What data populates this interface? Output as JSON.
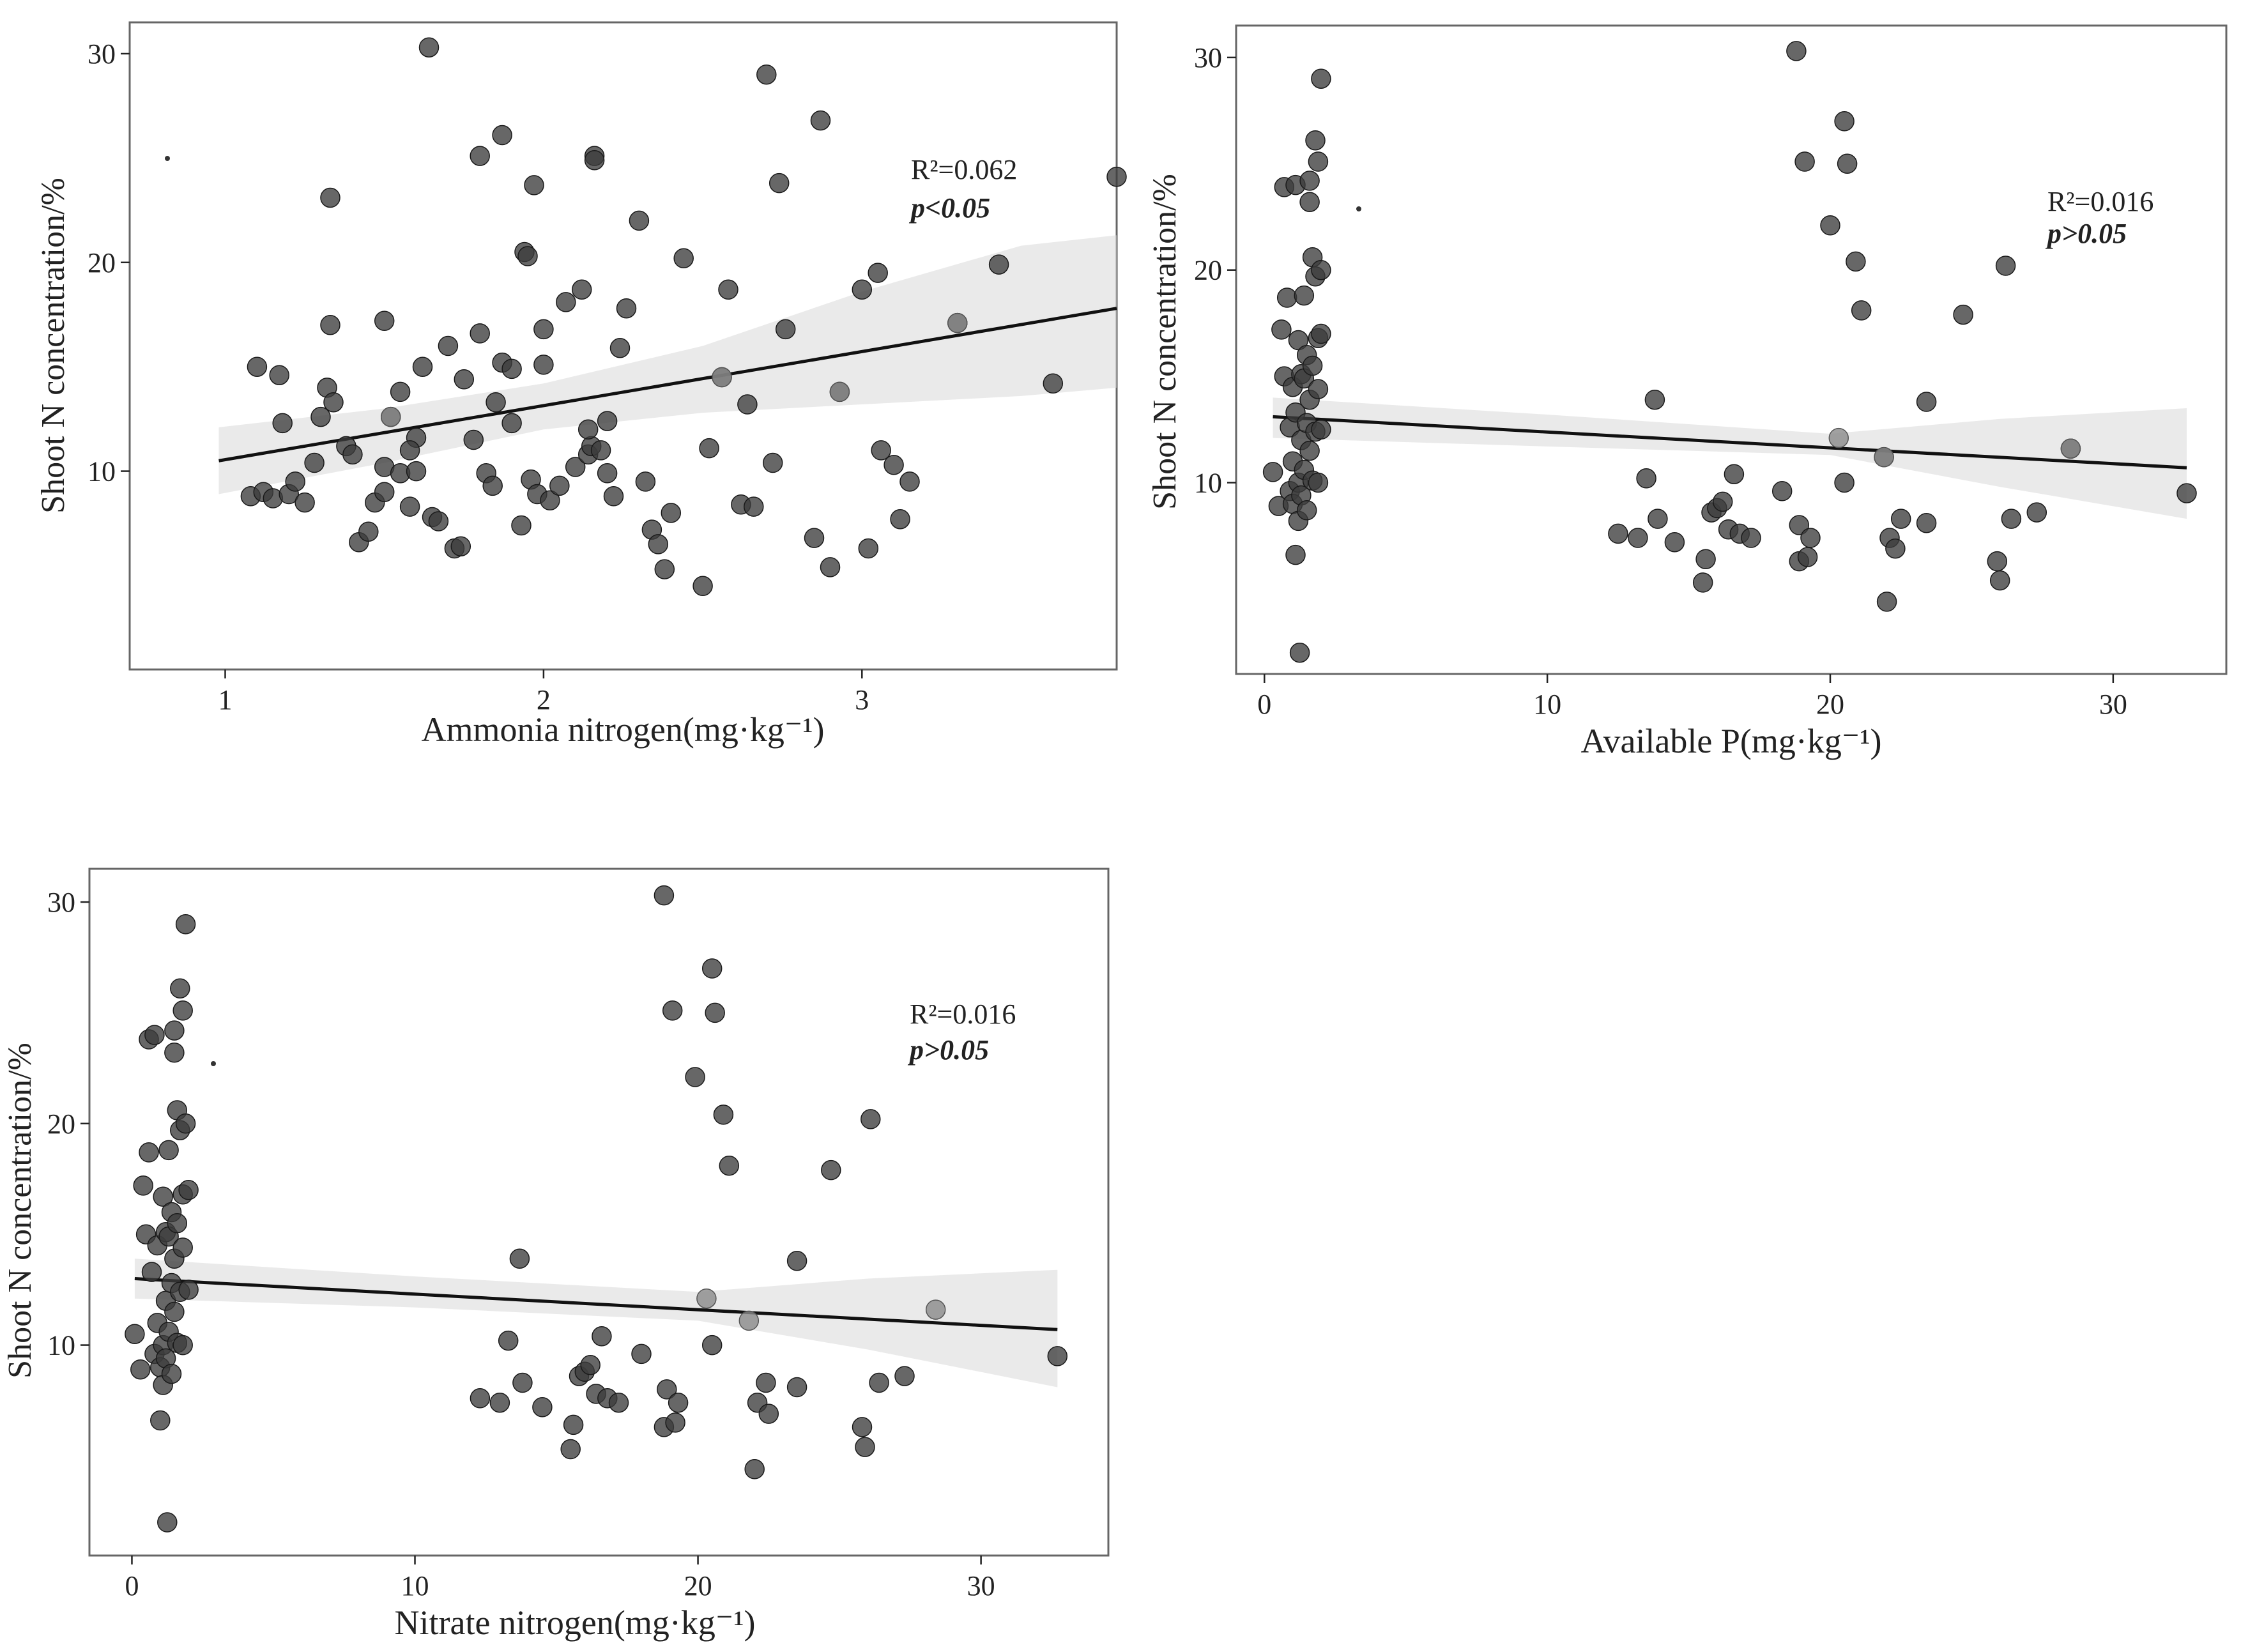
{
  "chart_data": [
    {
      "id": "ammonia",
      "type": "scatter",
      "xlabel": "Ammonia nitrogen(mg·kg⁻¹)",
      "ylabel": "Shoot N concentration/%",
      "xticks": [
        1,
        2,
        3
      ],
      "yticks": [
        10,
        20,
        30
      ],
      "xlim": [
        0.7,
        3.8
      ],
      "ylim": [
        0.5,
        31.5
      ],
      "annotation": {
        "r2": "R²=0.062",
        "p": "p<0.05"
      },
      "fit": {
        "x0": 0.98,
        "y0": 10.5,
        "x1": 3.8,
        "y1": 17.8
      },
      "band": [
        [
          0.98,
          12.1,
          8.9
        ],
        [
          1.5,
          13.0,
          10.4
        ],
        [
          2.0,
          14.2,
          12.0
        ],
        [
          2.5,
          16.0,
          12.8
        ],
        [
          3.0,
          18.6,
          13.2
        ],
        [
          3.5,
          20.8,
          13.6
        ],
        [
          3.8,
          21.3,
          14.0
        ]
      ],
      "points": [
        [
          1.1,
          15.0
        ],
        [
          1.17,
          14.6
        ],
        [
          1.18,
          12.3
        ],
        [
          1.08,
          8.8
        ],
        [
          1.12,
          9.0
        ],
        [
          1.15,
          8.7
        ],
        [
          1.2,
          8.9
        ],
        [
          1.22,
          9.5
        ],
        [
          1.25,
          8.5
        ],
        [
          1.28,
          10.4
        ],
        [
          1.3,
          12.6
        ],
        [
          1.32,
          14.0
        ],
        [
          1.34,
          13.3
        ],
        [
          1.33,
          17.0
        ],
        [
          1.33,
          23.1
        ],
        [
          1.38,
          11.2
        ],
        [
          1.4,
          10.8
        ],
        [
          1.42,
          6.6
        ],
        [
          1.45,
          7.1
        ],
        [
          1.47,
          8.5
        ],
        [
          1.5,
          9.0
        ],
        [
          1.5,
          10.2
        ],
        [
          1.5,
          17.2
        ],
        [
          1.52,
          12.6
        ],
        [
          1.55,
          13.8
        ],
        [
          1.55,
          9.9
        ],
        [
          1.58,
          8.3
        ],
        [
          1.6,
          11.6
        ],
        [
          1.62,
          15.0
        ],
        [
          1.64,
          30.3
        ],
        [
          1.65,
          7.8
        ],
        [
          1.67,
          7.6
        ],
        [
          1.7,
          16.0
        ],
        [
          1.72,
          6.3
        ],
        [
          1.74,
          6.4
        ],
        [
          1.75,
          14.4
        ],
        [
          1.78,
          11.5
        ],
        [
          1.8,
          16.6
        ],
        [
          1.8,
          25.1
        ],
        [
          1.82,
          9.9
        ],
        [
          1.84,
          9.3
        ],
        [
          1.85,
          13.3
        ],
        [
          1.87,
          15.2
        ],
        [
          1.87,
          26.1
        ],
        [
          1.9,
          14.9
        ],
        [
          1.93,
          7.4
        ],
        [
          1.94,
          20.5
        ],
        [
          1.95,
          20.3
        ],
        [
          1.96,
          9.6
        ],
        [
          1.97,
          23.7
        ],
        [
          1.98,
          8.9
        ],
        [
          2.0,
          16.8
        ],
        [
          2.0,
          15.1
        ],
        [
          2.02,
          8.6
        ],
        [
          2.05,
          9.3
        ],
        [
          2.07,
          18.1
        ],
        [
          2.1,
          10.2
        ],
        [
          2.12,
          18.7
        ],
        [
          2.14,
          10.8
        ],
        [
          2.15,
          11.2
        ],
        [
          2.16,
          25.1
        ],
        [
          2.16,
          24.9
        ],
        [
          2.18,
          11.0
        ],
        [
          2.2,
          12.4
        ],
        [
          2.2,
          9.9
        ],
        [
          2.22,
          8.8
        ],
        [
          2.24,
          15.9
        ],
        [
          2.26,
          17.8
        ],
        [
          2.3,
          22.0
        ],
        [
          2.32,
          9.5
        ],
        [
          2.34,
          7.2
        ],
        [
          2.36,
          6.5
        ],
        [
          2.38,
          5.3
        ],
        [
          2.44,
          20.2
        ],
        [
          2.5,
          4.5
        ],
        [
          2.52,
          11.1
        ],
        [
          2.56,
          14.5
        ],
        [
          2.58,
          18.7
        ],
        [
          2.62,
          8.4
        ],
        [
          2.64,
          13.2
        ],
        [
          2.66,
          8.3
        ],
        [
          2.7,
          29.0
        ],
        [
          2.72,
          10.4
        ],
        [
          2.74,
          23.8
        ],
        [
          2.76,
          16.8
        ],
        [
          2.85,
          6.8
        ],
        [
          2.87,
          26.8
        ],
        [
          2.9,
          5.4
        ],
        [
          2.93,
          13.8
        ],
        [
          3.0,
          18.7
        ],
        [
          3.02,
          6.3
        ],
        [
          3.05,
          19.5
        ],
        [
          3.06,
          11.0
        ],
        [
          3.1,
          10.3
        ],
        [
          3.12,
          7.7
        ],
        [
          3.15,
          9.5
        ],
        [
          3.3,
          17.1
        ],
        [
          3.43,
          19.9
        ],
        [
          3.6,
          14.2
        ],
        [
          3.8,
          24.1
        ],
        [
          2.14,
          12.0
        ],
        [
          1.6,
          10.0
        ],
        [
          1.9,
          12.3
        ],
        [
          2.4,
          8.0
        ],
        [
          1.58,
          11.0
        ]
      ],
      "light_points": [
        [
          3.3,
          17.1
        ],
        [
          2.56,
          14.5
        ],
        [
          2.93,
          13.8
        ],
        [
          1.52,
          12.6
        ]
      ]
    },
    {
      "id": "availableP",
      "type": "scatter",
      "xlabel": "Available P(mg·kg⁻¹)",
      "ylabel": "Shoot N concentration/%",
      "xticks": [
        0,
        10,
        20,
        30
      ],
      "yticks": [
        10,
        20,
        30
      ],
      "xlim": [
        -1.0,
        34.0
      ],
      "ylim": [
        1.0,
        31.5
      ],
      "annotation": {
        "r2": "R²=0.016",
        "p": "p>0.05"
      },
      "fit": {
        "x0": 0.3,
        "y0": 13.1,
        "x1": 32.6,
        "y1": 10.7
      },
      "band": [
        [
          0.3,
          14.0,
          12.1
        ],
        [
          10,
          13.2,
          11.7
        ],
        [
          20,
          12.3,
          11.3
        ],
        [
          26,
          13.0,
          9.8
        ],
        [
          32.6,
          13.5,
          8.3
        ]
      ],
      "points": [
        [
          0.3,
          10.5
        ],
        [
          0.5,
          8.9
        ],
        [
          0.6,
          17.2
        ],
        [
          0.7,
          23.9
        ],
        [
          0.7,
          15.0
        ],
        [
          0.8,
          18.7
        ],
        [
          0.9,
          12.6
        ],
        [
          0.9,
          9.6
        ],
        [
          1.0,
          14.5
        ],
        [
          1.0,
          11.0
        ],
        [
          1.0,
          9.0
        ],
        [
          1.1,
          24.0
        ],
        [
          1.1,
          13.3
        ],
        [
          1.1,
          6.6
        ],
        [
          1.2,
          16.7
        ],
        [
          1.2,
          10.0
        ],
        [
          1.2,
          8.2
        ],
        [
          1.25,
          2.0
        ],
        [
          1.3,
          15.1
        ],
        [
          1.3,
          12.0
        ],
        [
          1.3,
          9.4
        ],
        [
          1.4,
          18.8
        ],
        [
          1.4,
          14.9
        ],
        [
          1.4,
          10.6
        ],
        [
          1.5,
          16.0
        ],
        [
          1.5,
          12.8
        ],
        [
          1.5,
          8.7
        ],
        [
          1.6,
          23.2
        ],
        [
          1.6,
          24.2
        ],
        [
          1.6,
          13.9
        ],
        [
          1.6,
          11.5
        ],
        [
          1.7,
          20.6
        ],
        [
          1.7,
          15.5
        ],
        [
          1.7,
          10.1
        ],
        [
          1.8,
          26.1
        ],
        [
          1.8,
          19.7
        ],
        [
          1.8,
          12.4
        ],
        [
          1.9,
          25.1
        ],
        [
          1.9,
          16.8
        ],
        [
          1.9,
          14.4
        ],
        [
          1.9,
          10.0
        ],
        [
          2.0,
          29.0
        ],
        [
          2.0,
          20.0
        ],
        [
          2.0,
          17.0
        ],
        [
          2.0,
          12.5
        ],
        [
          12.5,
          7.6
        ],
        [
          13.2,
          7.4
        ],
        [
          13.5,
          10.2
        ],
        [
          13.8,
          13.9
        ],
        [
          13.9,
          8.3
        ],
        [
          14.5,
          7.2
        ],
        [
          15.5,
          5.3
        ],
        [
          15.6,
          6.4
        ],
        [
          15.8,
          8.6
        ],
        [
          16.0,
          8.8
        ],
        [
          16.2,
          9.1
        ],
        [
          16.4,
          7.8
        ],
        [
          16.6,
          10.4
        ],
        [
          16.8,
          7.6
        ],
        [
          17.2,
          7.4
        ],
        [
          18.3,
          9.6
        ],
        [
          18.8,
          30.3
        ],
        [
          18.9,
          6.3
        ],
        [
          18.9,
          8.0
        ],
        [
          19.1,
          25.1
        ],
        [
          19.2,
          6.5
        ],
        [
          19.3,
          7.4
        ],
        [
          20.0,
          22.1
        ],
        [
          20.5,
          27.0
        ],
        [
          20.5,
          10.0
        ],
        [
          20.6,
          25.0
        ],
        [
          20.9,
          20.4
        ],
        [
          21.1,
          18.1
        ],
        [
          21.9,
          11.2
        ],
        [
          22.0,
          4.4
        ],
        [
          22.1,
          7.4
        ],
        [
          22.3,
          6.9
        ],
        [
          22.5,
          8.3
        ],
        [
          23.4,
          13.8
        ],
        [
          23.4,
          8.1
        ],
        [
          24.7,
          17.9
        ],
        [
          25.9,
          6.3
        ],
        [
          26.0,
          5.4
        ],
        [
          26.2,
          20.2
        ],
        [
          26.4,
          8.3
        ],
        [
          27.3,
          8.6
        ],
        [
          28.5,
          11.6
        ],
        [
          32.6,
          9.5
        ]
      ],
      "light_points": [
        [
          20.3,
          12.1
        ],
        [
          21.9,
          11.2
        ],
        [
          28.5,
          11.6
        ]
      ]
    },
    {
      "id": "nitrate",
      "type": "scatter",
      "xlabel": "Nitrate nitrogen(mg·kg⁻¹)",
      "ylabel": "Shoot N concentration/%",
      "xticks": [
        0,
        10,
        20,
        30
      ],
      "yticks": [
        10,
        20,
        30
      ],
      "xlim": [
        -1.5,
        34.5
      ],
      "ylim": [
        0.5,
        31.5
      ],
      "annotation": {
        "r2": "R²=0.016",
        "p": "p>0.05"
      },
      "fit": {
        "x0": 0.1,
        "y0": 13.0,
        "x1": 32.7,
        "y1": 10.7
      },
      "band": [
        [
          0.1,
          13.9,
          12.1
        ],
        [
          10,
          13.1,
          11.7
        ],
        [
          20,
          12.4,
          11.1
        ],
        [
          26,
          13.0,
          9.8
        ],
        [
          32.7,
          13.4,
          8.1
        ]
      ],
      "points": [
        [
          0.1,
          10.5
        ],
        [
          0.3,
          8.9
        ],
        [
          0.4,
          17.2
        ],
        [
          0.5,
          15.0
        ],
        [
          0.6,
          23.8
        ],
        [
          0.6,
          18.7
        ],
        [
          0.7,
          13.3
        ],
        [
          0.8,
          9.6
        ],
        [
          0.8,
          24.0
        ],
        [
          0.9,
          14.5
        ],
        [
          0.9,
          11.0
        ],
        [
          1.0,
          9.0
        ],
        [
          1.0,
          6.6
        ],
        [
          1.1,
          16.7
        ],
        [
          1.1,
          10.0
        ],
        [
          1.1,
          8.2
        ],
        [
          1.2,
          15.1
        ],
        [
          1.2,
          12.0
        ],
        [
          1.2,
          9.4
        ],
        [
          1.25,
          2.0
        ],
        [
          1.3,
          18.8
        ],
        [
          1.3,
          14.9
        ],
        [
          1.3,
          10.6
        ],
        [
          1.4,
          16.0
        ],
        [
          1.4,
          12.8
        ],
        [
          1.4,
          8.7
        ],
        [
          1.5,
          23.2
        ],
        [
          1.5,
          24.2
        ],
        [
          1.5,
          13.9
        ],
        [
          1.5,
          11.5
        ],
        [
          1.6,
          20.6
        ],
        [
          1.6,
          15.5
        ],
        [
          1.6,
          10.1
        ],
        [
          1.7,
          26.1
        ],
        [
          1.7,
          19.7
        ],
        [
          1.7,
          12.4
        ],
        [
          1.8,
          25.1
        ],
        [
          1.8,
          16.8
        ],
        [
          1.8,
          14.4
        ],
        [
          1.8,
          10.0
        ],
        [
          1.9,
          29.0
        ],
        [
          1.9,
          20.0
        ],
        [
          2.0,
          17.0
        ],
        [
          2.0,
          12.5
        ],
        [
          12.3,
          7.6
        ],
        [
          13.0,
          7.4
        ],
        [
          13.3,
          10.2
        ],
        [
          13.7,
          13.9
        ],
        [
          13.8,
          8.3
        ],
        [
          14.5,
          7.2
        ],
        [
          15.5,
          5.3
        ],
        [
          15.6,
          6.4
        ],
        [
          15.8,
          8.6
        ],
        [
          16.0,
          8.8
        ],
        [
          16.2,
          9.1
        ],
        [
          16.4,
          7.8
        ],
        [
          16.6,
          10.4
        ],
        [
          16.8,
          7.6
        ],
        [
          17.2,
          7.4
        ],
        [
          18.0,
          9.6
        ],
        [
          18.8,
          30.3
        ],
        [
          18.8,
          6.3
        ],
        [
          18.9,
          8.0
        ],
        [
          19.1,
          25.1
        ],
        [
          19.2,
          6.5
        ],
        [
          19.3,
          7.4
        ],
        [
          19.9,
          22.1
        ],
        [
          20.5,
          27.0
        ],
        [
          20.5,
          10.0
        ],
        [
          20.6,
          25.0
        ],
        [
          20.9,
          20.4
        ],
        [
          21.1,
          18.1
        ],
        [
          22.0,
          4.4
        ],
        [
          22.1,
          7.4
        ],
        [
          22.4,
          8.3
        ],
        [
          22.5,
          6.9
        ],
        [
          23.5,
          13.8
        ],
        [
          23.5,
          8.1
        ],
        [
          24.7,
          17.9
        ],
        [
          25.8,
          6.3
        ],
        [
          25.9,
          5.4
        ],
        [
          26.1,
          20.2
        ],
        [
          26.4,
          8.3
        ],
        [
          27.3,
          8.6
        ],
        [
          32.7,
          9.5
        ]
      ],
      "light_points": [
        [
          20.3,
          12.1
        ],
        [
          21.8,
          11.1
        ],
        [
          28.4,
          11.6
        ]
      ]
    }
  ]
}
